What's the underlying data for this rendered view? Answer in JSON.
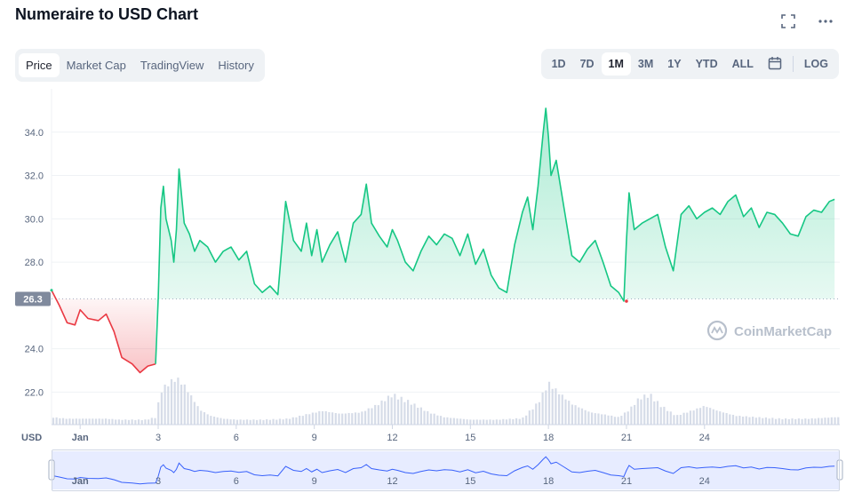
{
  "title": "Numeraire to USD Chart",
  "tabs": [
    {
      "label": "Price",
      "active": true
    },
    {
      "label": "Market Cap",
      "active": false
    },
    {
      "label": "TradingView",
      "active": false
    },
    {
      "label": "History",
      "active": false
    }
  ],
  "ranges": [
    {
      "label": "1D",
      "active": false
    },
    {
      "label": "7D",
      "active": false
    },
    {
      "label": "1M",
      "active": true
    },
    {
      "label": "3M",
      "active": false
    },
    {
      "label": "1Y",
      "active": false
    },
    {
      "label": "YTD",
      "active": false
    },
    {
      "label": "ALL",
      "active": false
    }
  ],
  "log_label": "LOG",
  "icons": {
    "fullscreen": "fullscreen-icon",
    "more": "more-horizontal-icon",
    "calendar": "calendar-icon"
  },
  "watermark": "CoinMarketCap",
  "colors": {
    "up": "#16c784",
    "down": "#ea3943",
    "accent": "#3861fb"
  },
  "chart_data": {
    "type": "area",
    "currency_label": "USD",
    "y_ticks": [
      "34.0",
      "32.0",
      "30.0",
      "28.0",
      "24.0",
      "22.0"
    ],
    "ylim": [
      20.5,
      36.0
    ],
    "x_ticks": [
      "Jan",
      "3",
      "6",
      "9",
      "12",
      "15",
      "18",
      "21",
      "24"
    ],
    "x_tick_days": [
      31,
      34,
      37,
      40,
      43,
      46,
      49,
      52,
      55
    ],
    "xlim": [
      29.9,
      60.2
    ],
    "reference_price": 26.3,
    "reference_label": "26.3",
    "grid": true,
    "series": [
      {
        "x": [
          29.9,
          30.2,
          30.5,
          30.8,
          31.0,
          31.3,
          31.7,
          32.0,
          32.3,
          32.6,
          33.0,
          33.3,
          33.6,
          33.9
        ],
        "y": [
          26.7,
          26.0,
          25.2,
          25.1,
          25.8,
          25.4,
          25.3,
          25.6,
          24.8,
          23.6,
          23.3,
          22.9,
          23.2,
          23.3
        ]
      },
      {
        "x": [
          33.9,
          34.0,
          34.1,
          34.2,
          34.3,
          34.5,
          34.6,
          34.7,
          34.8,
          35.0,
          35.2,
          35.4,
          35.6,
          35.9,
          36.2,
          36.5,
          36.8,
          37.1,
          37.4,
          37.7,
          38.0,
          38.3,
          38.6,
          38.9,
          39.2,
          39.5,
          39.7,
          39.9,
          40.1,
          40.3,
          40.6,
          40.9,
          41.2,
          41.5,
          41.8,
          42.0,
          42.2,
          42.5,
          42.8,
          43.0,
          43.2,
          43.5,
          43.8,
          44.1,
          44.4,
          44.7,
          45.0,
          45.3,
          45.6,
          45.9,
          46.2,
          46.5,
          46.8,
          47.1,
          47.4,
          47.7,
          48.0,
          48.2,
          48.4,
          48.6,
          48.8,
          48.9,
          49.0,
          49.1,
          49.3,
          49.6,
          49.9,
          50.2,
          50.5,
          50.8,
          51.1,
          51.4,
          51.7,
          51.9,
          52.0,
          52.1,
          52.3,
          52.6,
          52.9,
          53.2,
          53.5,
          53.8,
          54.1,
          54.4,
          54.7,
          55.0,
          55.3,
          55.6,
          55.9,
          56.2,
          56.5,
          56.8,
          57.1,
          57.4,
          57.7,
          58.0,
          58.3,
          58.6,
          58.9,
          59.2,
          59.5,
          59.8,
          60.0
        ],
        "y": [
          23.3,
          26.3,
          30.5,
          31.5,
          30.0,
          29.0,
          28.0,
          29.5,
          32.3,
          29.8,
          29.3,
          28.5,
          29.0,
          28.7,
          28.0,
          28.5,
          28.7,
          28.1,
          28.5,
          27.0,
          26.6,
          26.9,
          26.5,
          30.8,
          29.0,
          28.5,
          29.8,
          28.3,
          29.5,
          28.0,
          28.8,
          29.4,
          28.0,
          29.8,
          30.2,
          31.6,
          29.8,
          29.2,
          28.7,
          29.5,
          29.0,
          28.0,
          27.6,
          28.5,
          29.2,
          28.8,
          29.3,
          29.1,
          28.3,
          29.3,
          27.9,
          28.6,
          27.4,
          26.8,
          26.6,
          28.8,
          30.3,
          31.0,
          29.5,
          31.5,
          34.0,
          35.1,
          33.8,
          32.0,
          32.7,
          30.5,
          28.3,
          28.0,
          28.6,
          29.0,
          28.0,
          26.9,
          26.6,
          26.2,
          29.0,
          31.2,
          29.5,
          29.8,
          30.0,
          30.2,
          28.7,
          27.6,
          30.2,
          30.6,
          30.0,
          30.3,
          30.5,
          30.2,
          30.8,
          31.1,
          30.1,
          30.5,
          29.6,
          30.3,
          30.2,
          29.8,
          29.3,
          29.2,
          30.1,
          30.4,
          30.3,
          30.8,
          30.9
        ]
      }
    ],
    "volume": {
      "x": [
        29.9,
        30.5,
        31.0,
        31.5,
        32.0,
        32.5,
        33.0,
        33.5,
        33.9,
        34.1,
        34.4,
        34.7,
        35.0,
        35.3,
        35.6,
        36.0,
        36.5,
        37.0,
        38.0,
        39.0,
        39.8,
        40.3,
        41.0,
        41.8,
        42.4,
        43.0,
        43.6,
        44.4,
        45.0,
        46.0,
        47.0,
        48.0,
        48.6,
        49.0,
        49.4,
        49.9,
        50.6,
        51.2,
        51.7,
        52.1,
        52.5,
        52.9,
        53.3,
        53.9,
        54.6,
        55.0,
        55.5,
        56.2,
        57.0,
        58.0,
        59.0,
        60.0
      ],
      "y": [
        0.15,
        0.12,
        0.12,
        0.12,
        0.12,
        0.1,
        0.1,
        0.1,
        0.15,
        0.7,
        0.85,
        0.95,
        0.8,
        0.55,
        0.3,
        0.18,
        0.12,
        0.1,
        0.1,
        0.12,
        0.22,
        0.28,
        0.22,
        0.25,
        0.4,
        0.62,
        0.48,
        0.25,
        0.15,
        0.1,
        0.1,
        0.13,
        0.45,
        0.85,
        0.65,
        0.42,
        0.25,
        0.2,
        0.15,
        0.3,
        0.55,
        0.62,
        0.4,
        0.18,
        0.3,
        0.38,
        0.28,
        0.18,
        0.15,
        0.12,
        0.12,
        0.15
      ]
    }
  }
}
